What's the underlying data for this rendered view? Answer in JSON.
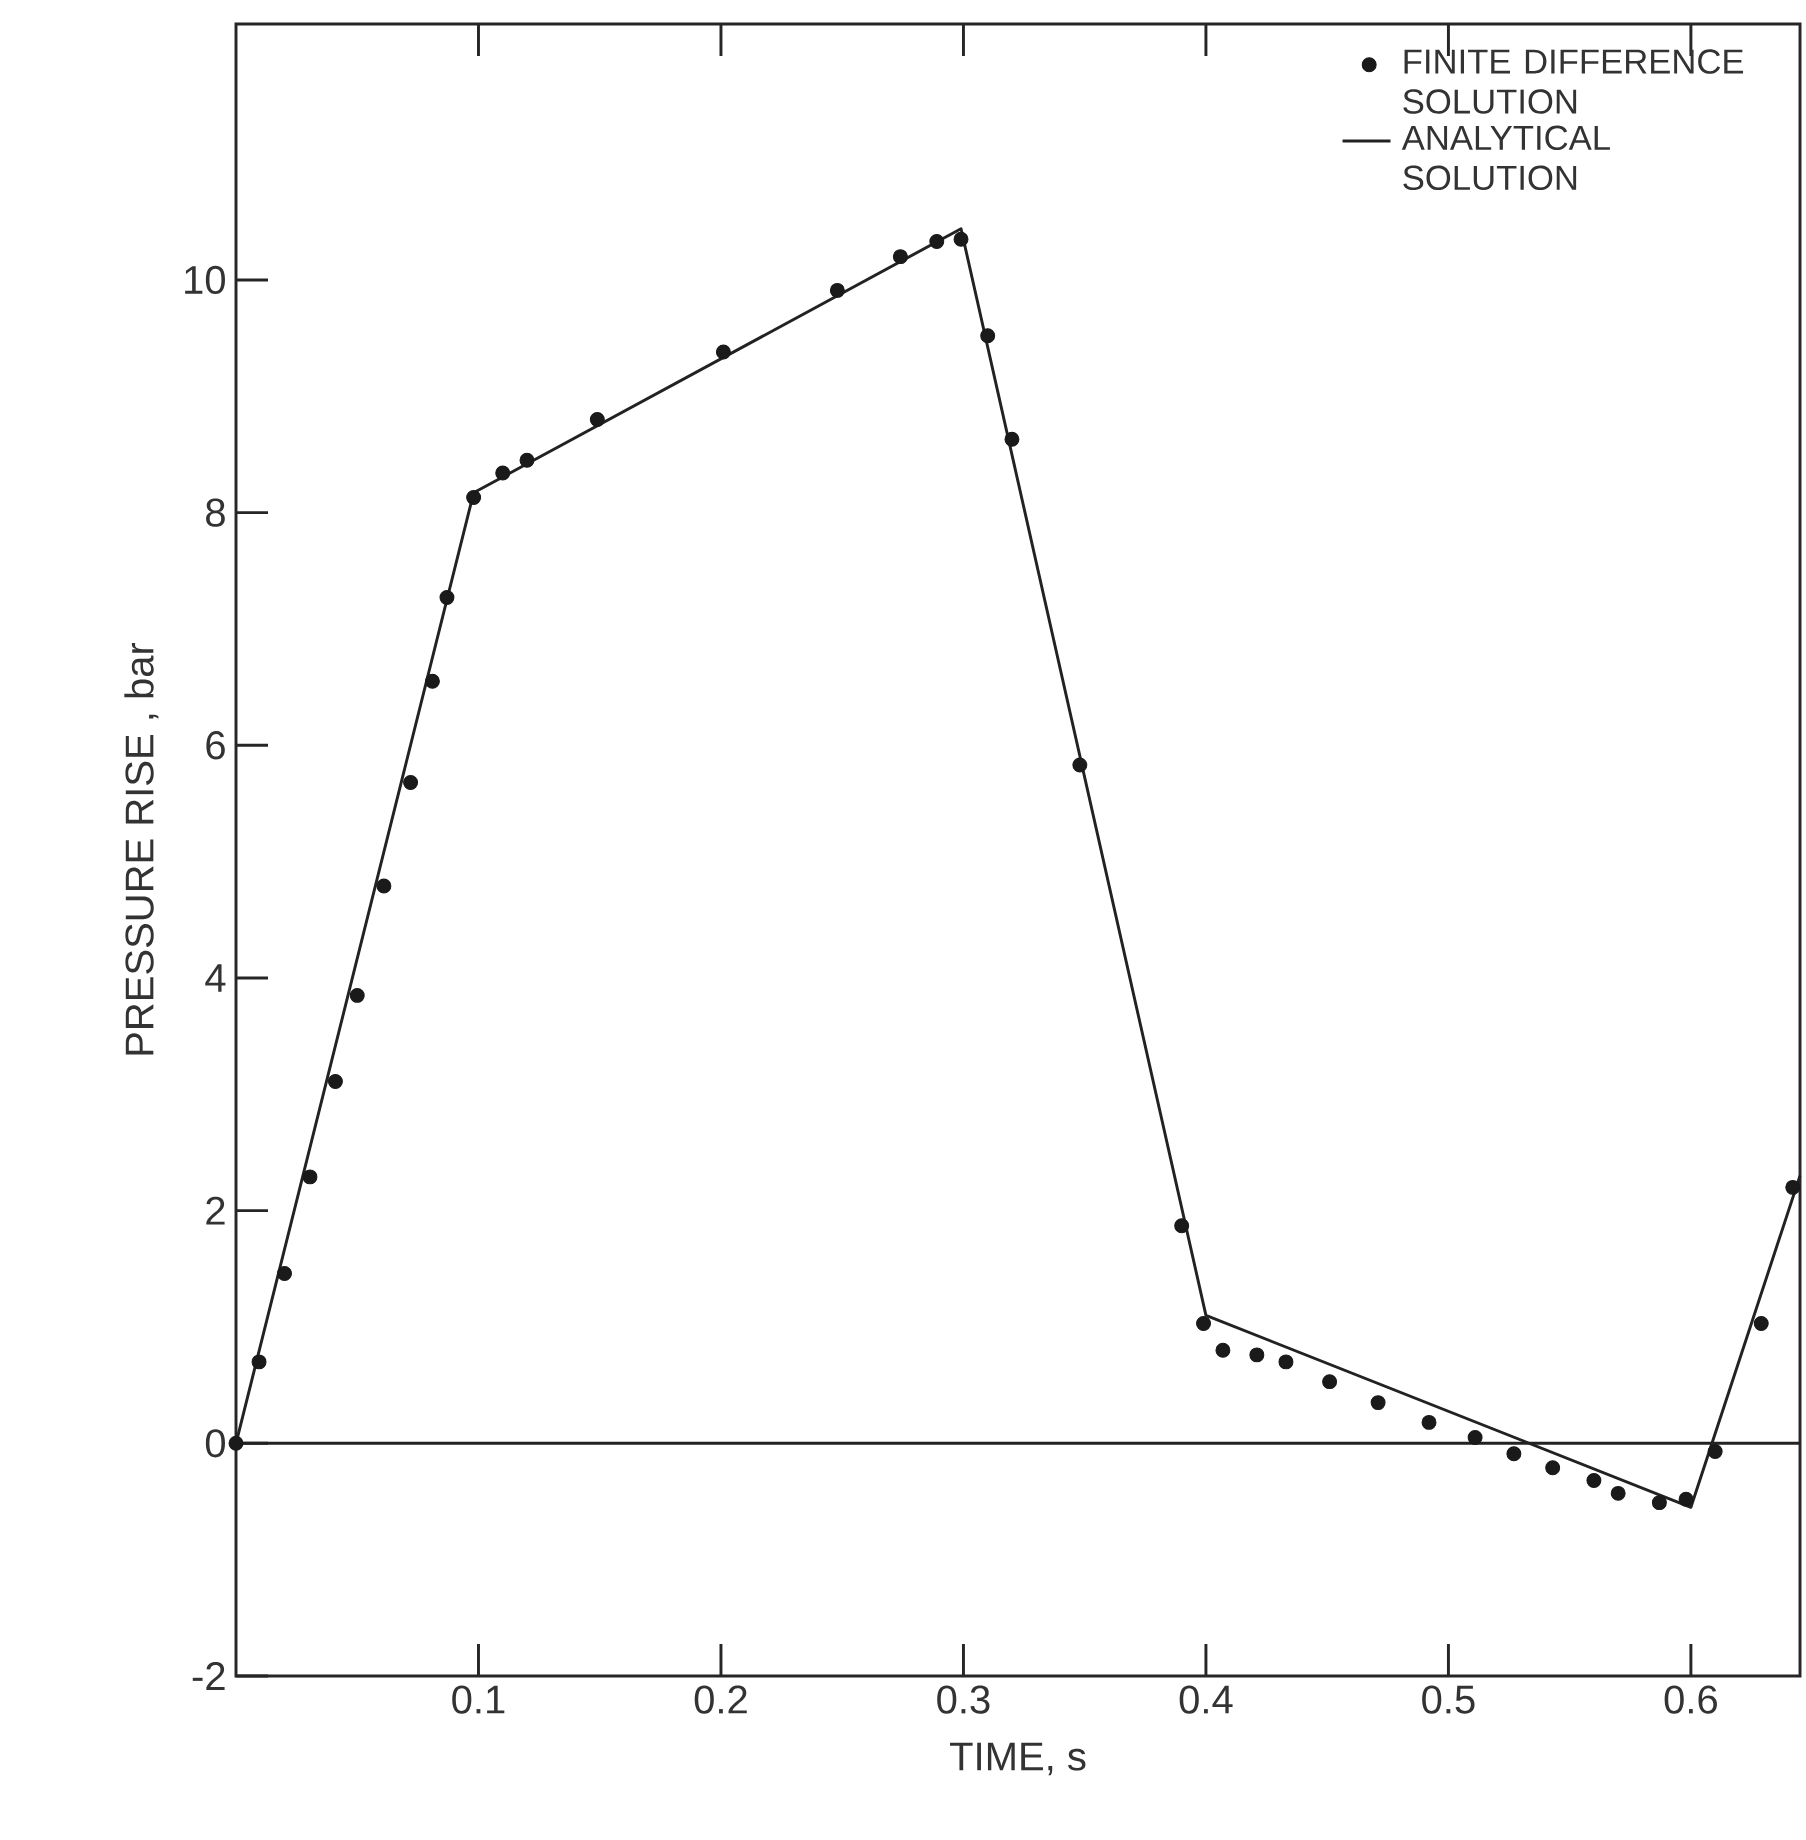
{
  "chart_data": {
    "type": "line",
    "xlabel": "TIME, s",
    "ylabel": "PRESSURE RISE , bar",
    "xlim": [
      0,
      0.645
    ],
    "ylim": [
      -2,
      12.2
    ],
    "xticks": [
      0.1,
      0.2,
      0.3,
      0.4,
      0.5,
      0.6
    ],
    "yticks": [
      -2,
      0,
      2,
      4,
      6,
      8,
      10
    ],
    "legend": "top right",
    "grid": false,
    "ref_lines": [
      {
        "axis": "y",
        "value": 0,
        "color": "#222222"
      }
    ],
    "series": [
      {
        "name": "FINITE DIFFERENCE SOLUTION",
        "type": "scatter",
        "marker": "circle",
        "color": "#1a1a1a",
        "x": [
          0,
          0.0095,
          0.02,
          0.0305,
          0.041,
          0.05,
          0.061,
          0.072,
          0.081,
          0.087,
          0.098,
          0.11,
          0.12,
          0.149,
          0.201,
          0.248,
          0.274,
          0.289,
          0.299,
          0.31,
          0.32,
          0.348,
          0.39,
          0.399,
          0.407,
          0.421,
          0.433,
          0.451,
          0.471,
          0.492,
          0.511,
          0.527,
          0.543,
          0.56,
          0.57,
          0.587,
          0.598,
          0.61,
          0.629,
          0.642
        ],
        "values": [
          0,
          0.7,
          1.46,
          2.29,
          3.11,
          3.85,
          4.79,
          5.68,
          6.55,
          7.27,
          8.13,
          8.34,
          8.45,
          8.8,
          9.38,
          9.91,
          10.2,
          10.33,
          10.35,
          9.52,
          8.63,
          5.83,
          1.87,
          1.03,
          0.8,
          0.76,
          0.7,
          0.53,
          0.35,
          0.18,
          0.05,
          -0.09,
          -0.21,
          -0.32,
          -0.43,
          -0.51,
          -0.48,
          -0.07,
          1.03,
          2.2
        ]
      },
      {
        "name": "ANALYTICAL SOLUTION",
        "type": "line",
        "line_style": "solid",
        "color": "#222222",
        "x": [
          0,
          0.098,
          0.299,
          0.4,
          0.6,
          0.645
        ],
        "values": [
          0,
          8.17,
          10.44,
          1.1,
          -0.55,
          2.3
        ]
      }
    ]
  }
}
